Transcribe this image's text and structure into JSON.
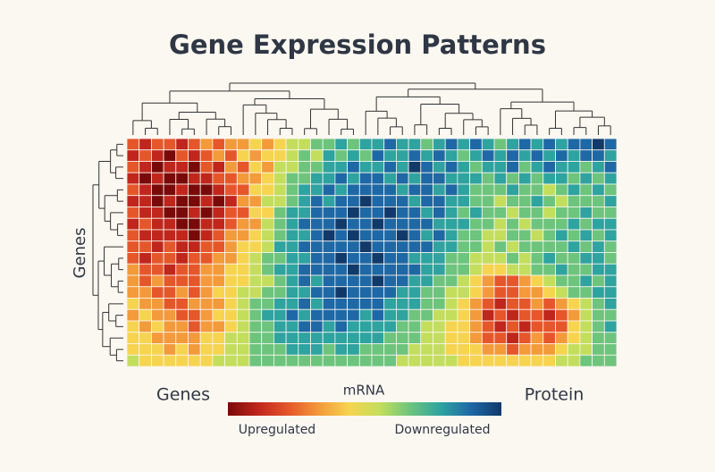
{
  "chart_data": {
    "type": "heatmap",
    "title": "Gene Expression Patterns",
    "y_label": "Genes",
    "annotations": [
      "Genes",
      "mRNA",
      "Protein"
    ],
    "colorbar": {
      "low_label": "Upregulated",
      "high_label": "Downregulated"
    },
    "zlim": [
      0,
      9
    ],
    "colorscale": [
      "#7a0a0a",
      "#c0261c",
      "#e5572b",
      "#f39a3b",
      "#f6d44f",
      "#c3de5c",
      "#6dc47d",
      "#2ea3a0",
      "#1e68a5",
      "#113a6a"
    ],
    "z": [
      [
        2,
        1,
        2,
        2,
        1,
        2,
        3,
        2,
        3,
        3,
        4,
        3,
        4,
        5,
        5,
        6,
        6,
        7,
        6,
        7,
        7,
        8,
        7,
        7,
        6,
        7,
        8,
        7,
        8,
        7,
        6,
        7,
        8,
        7,
        8,
        7,
        8,
        8,
        9,
        8
      ],
      [
        1,
        2,
        1,
        0,
        2,
        1,
        2,
        3,
        2,
        4,
        3,
        4,
        4,
        5,
        6,
        5,
        7,
        6,
        7,
        6,
        8,
        7,
        7,
        8,
        7,
        8,
        7,
        6,
        7,
        8,
        7,
        8,
        7,
        8,
        7,
        8,
        7,
        8,
        8,
        7
      ],
      [
        2,
        1,
        0,
        1,
        1,
        0,
        2,
        1,
        3,
        2,
        4,
        3,
        5,
        5,
        6,
        6,
        7,
        7,
        8,
        7,
        7,
        8,
        7,
        9,
        8,
        7,
        8,
        7,
        6,
        7,
        7,
        8,
        6,
        7,
        8,
        7,
        7,
        6,
        7,
        8
      ],
      [
        1,
        0,
        1,
        0,
        0,
        1,
        1,
        2,
        2,
        3,
        3,
        4,
        5,
        6,
        6,
        7,
        7,
        8,
        7,
        8,
        8,
        7,
        8,
        7,
        8,
        8,
        7,
        7,
        7,
        6,
        7,
        6,
        7,
        6,
        7,
        7,
        6,
        7,
        6,
        7
      ],
      [
        2,
        1,
        0,
        0,
        1,
        0,
        0,
        1,
        2,
        2,
        4,
        4,
        5,
        6,
        7,
        7,
        8,
        7,
        8,
        8,
        8,
        8,
        7,
        8,
        8,
        7,
        8,
        7,
        6,
        6,
        6,
        7,
        6,
        6,
        5,
        6,
        7,
        6,
        7,
        6
      ],
      [
        1,
        1,
        0,
        1,
        0,
        0,
        1,
        0,
        1,
        3,
        3,
        5,
        5,
        6,
        7,
        8,
        7,
        8,
        8,
        9,
        8,
        8,
        8,
        7,
        8,
        8,
        7,
        7,
        6,
        6,
        5,
        6,
        6,
        7,
        6,
        5,
        6,
        6,
        6,
        7
      ],
      [
        2,
        1,
        1,
        0,
        0,
        1,
        0,
        1,
        2,
        2,
        4,
        4,
        6,
        7,
        7,
        8,
        8,
        8,
        9,
        8,
        8,
        9,
        8,
        8,
        7,
        8,
        7,
        6,
        7,
        6,
        6,
        5,
        6,
        6,
        5,
        6,
        6,
        7,
        6,
        6
      ],
      [
        1,
        2,
        1,
        1,
        0,
        0,
        1,
        1,
        2,
        3,
        3,
        5,
        6,
        7,
        8,
        8,
        8,
        9,
        8,
        8,
        9,
        8,
        8,
        8,
        8,
        7,
        7,
        7,
        6,
        6,
        5,
        6,
        5,
        6,
        6,
        6,
        7,
        6,
        7,
        7
      ],
      [
        2,
        1,
        1,
        1,
        1,
        0,
        1,
        2,
        3,
        3,
        4,
        5,
        6,
        7,
        7,
        8,
        9,
        8,
        9,
        8,
        8,
        8,
        9,
        8,
        7,
        8,
        7,
        6,
        6,
        5,
        5,
        6,
        6,
        5,
        6,
        7,
        6,
        7,
        6,
        7
      ],
      [
        2,
        2,
        1,
        2,
        1,
        1,
        2,
        2,
        3,
        4,
        4,
        5,
        7,
        7,
        8,
        8,
        8,
        8,
        8,
        9,
        8,
        8,
        8,
        8,
        8,
        7,
        7,
        6,
        6,
        5,
        6,
        5,
        6,
        6,
        6,
        6,
        7,
        6,
        7,
        6
      ],
      [
        2,
        1,
        2,
        2,
        1,
        2,
        2,
        3,
        3,
        4,
        5,
        6,
        6,
        7,
        7,
        8,
        8,
        9,
        8,
        8,
        9,
        8,
        8,
        7,
        7,
        7,
        6,
        6,
        5,
        5,
        5,
        6,
        5,
        6,
        7,
        6,
        6,
        7,
        7,
        6
      ],
      [
        3,
        2,
        2,
        1,
        2,
        2,
        3,
        3,
        4,
        4,
        5,
        6,
        7,
        7,
        8,
        8,
        8,
        8,
        9,
        8,
        8,
        8,
        8,
        8,
        7,
        7,
        6,
        6,
        5,
        4,
        4,
        5,
        5,
        6,
        6,
        7,
        6,
        6,
        7,
        7
      ],
      [
        3,
        2,
        3,
        2,
        2,
        2,
        3,
        3,
        4,
        4,
        5,
        5,
        6,
        7,
        8,
        7,
        8,
        8,
        8,
        8,
        9,
        8,
        8,
        7,
        7,
        6,
        6,
        5,
        4,
        3,
        2,
        2,
        3,
        4,
        5,
        6,
        6,
        7,
        6,
        7
      ],
      [
        3,
        3,
        2,
        2,
        3,
        2,
        3,
        4,
        4,
        5,
        5,
        6,
        6,
        7,
        7,
        8,
        8,
        9,
        8,
        8,
        8,
        8,
        7,
        7,
        6,
        6,
        5,
        5,
        4,
        3,
        2,
        2,
        3,
        3,
        4,
        5,
        6,
        6,
        7,
        7
      ],
      [
        4,
        3,
        3,
        2,
        2,
        3,
        3,
        3,
        4,
        5,
        6,
        6,
        7,
        7,
        8,
        7,
        8,
        8,
        8,
        8,
        8,
        7,
        7,
        7,
        6,
        6,
        5,
        4,
        3,
        2,
        1,
        2,
        2,
        3,
        2,
        3,
        4,
        5,
        6,
        7
      ],
      [
        3,
        4,
        3,
        3,
        2,
        2,
        3,
        4,
        4,
        5,
        6,
        7,
        7,
        8,
        7,
        8,
        8,
        8,
        8,
        7,
        8,
        7,
        7,
        6,
        6,
        5,
        5,
        4,
        3,
        1,
        2,
        1,
        2,
        2,
        1,
        2,
        3,
        5,
        6,
        6
      ],
      [
        4,
        3,
        4,
        3,
        3,
        2,
        3,
        3,
        4,
        5,
        6,
        6,
        7,
        7,
        8,
        8,
        7,
        8,
        7,
        7,
        7,
        7,
        6,
        6,
        5,
        5,
        4,
        4,
        3,
        2,
        1,
        2,
        1,
        2,
        2,
        2,
        4,
        5,
        6,
        7
      ],
      [
        4,
        4,
        3,
        3,
        3,
        3,
        4,
        4,
        5,
        5,
        6,
        6,
        7,
        7,
        7,
        7,
        7,
        7,
        7,
        7,
        7,
        6,
        6,
        6,
        5,
        5,
        4,
        4,
        3,
        2,
        2,
        1,
        2,
        3,
        2,
        3,
        4,
        5,
        6,
        6
      ],
      [
        4,
        4,
        4,
        3,
        4,
        3,
        4,
        4,
        5,
        5,
        6,
        6,
        6,
        7,
        7,
        7,
        6,
        7,
        7,
        6,
        6,
        6,
        6,
        5,
        5,
        5,
        4,
        4,
        4,
        3,
        3,
        2,
        3,
        3,
        3,
        4,
        5,
        5,
        6,
        6
      ],
      [
        5,
        4,
        4,
        4,
        4,
        4,
        4,
        5,
        5,
        5,
        6,
        6,
        6,
        6,
        6,
        6,
        6,
        6,
        6,
        6,
        6,
        6,
        5,
        5,
        5,
        5,
        5,
        4,
        4,
        4,
        4,
        4,
        4,
        4,
        4,
        5,
        5,
        6,
        6,
        6
      ]
    ]
  }
}
